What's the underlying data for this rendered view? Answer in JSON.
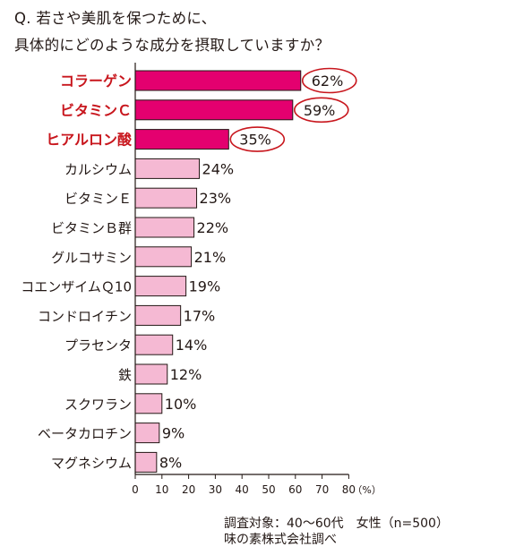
{
  "chart_data": {
    "type": "bar",
    "orientation": "horizontal",
    "title_lines": [
      "Q. 若さや美肌を保つために、",
      "具体的にどのような成分を摂取していますか？"
    ],
    "categories": [
      "コラーゲン",
      "ビタミンＣ",
      "ヒアルロン酸",
      "カルシウム",
      "ビタミンＥ",
      "ビタミンＢ群",
      "グルコサミン",
      "コエンザイムＱ10",
      "コンドロイチン",
      "プラセンタ",
      "鉄",
      "スクワラン",
      "ベータカロチン",
      "マグネシウム"
    ],
    "values": [
      62,
      59,
      35,
      24,
      23,
      22,
      21,
      19,
      17,
      14,
      12,
      10,
      9,
      8
    ],
    "value_labels": [
      "62%",
      "59%",
      "35%",
      "24%",
      "23%",
      "22%",
      "21%",
      "19%",
      "17%",
      "14%",
      "12%",
      "10%",
      "9%",
      "8%"
    ],
    "highlight_count": 3,
    "xlim": [
      0,
      80
    ],
    "xticks": [
      "0",
      "10",
      "20",
      "30",
      "40",
      "50",
      "60",
      "70",
      "80"
    ],
    "x_unit": "（%）",
    "grid": false,
    "legend": "none",
    "colors": {
      "highlight_bar": "#e4006f",
      "normal_bar": "#f5b9d3",
      "highlight_label": "#c8161d",
      "circle": "#c8161d",
      "text": "#231815"
    }
  },
  "footer": {
    "line1": "調査対象：40～60代　女性（n=500）",
    "line2": "味の素株式会社調べ"
  }
}
